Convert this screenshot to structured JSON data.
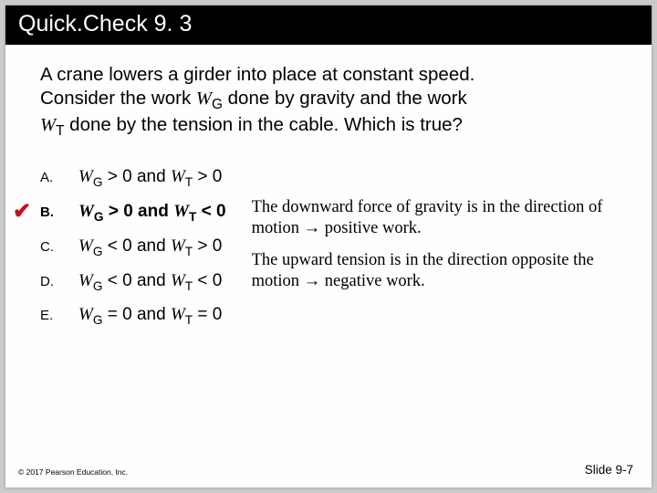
{
  "title": "Quick.Check 9. 3",
  "question_line1": "A crane lowers a girder into place at constant speed.",
  "question_line2a": "Consider the work ",
  "question_line2b": " done by gravity and the work",
  "question_line3a": "",
  "question_line3b": " done by the tension in the cable. Which is true?",
  "wg_sym": "W",
  "wg_sub": "G",
  "wt_sym": "W",
  "wt_sub": "T",
  "options": {
    "a": {
      "letter": "A.",
      "gt1": " > 0 and ",
      "gt2": " > 0"
    },
    "b": {
      "letter": "B.",
      "gt1": " > 0 and ",
      "gt2": " < 0"
    },
    "c": {
      "letter": "C.",
      "gt1": " < 0 and ",
      "gt2": " > 0"
    },
    "d": {
      "letter": "D.",
      "gt1": " < 0 and ",
      "gt2": " < 0"
    },
    "e": {
      "letter": "E.",
      "gt1": " = 0 and ",
      "gt2": " = 0"
    }
  },
  "explain1": "The downward force of gravity is in the direction of motion → positive work.",
  "explain2": "The upward tension is in the direction opposite the motion → negative work.",
  "copyright": "© 2017 Pearson Education, Inc.",
  "slidenum": "Slide 9-7",
  "checkmark": "✔"
}
